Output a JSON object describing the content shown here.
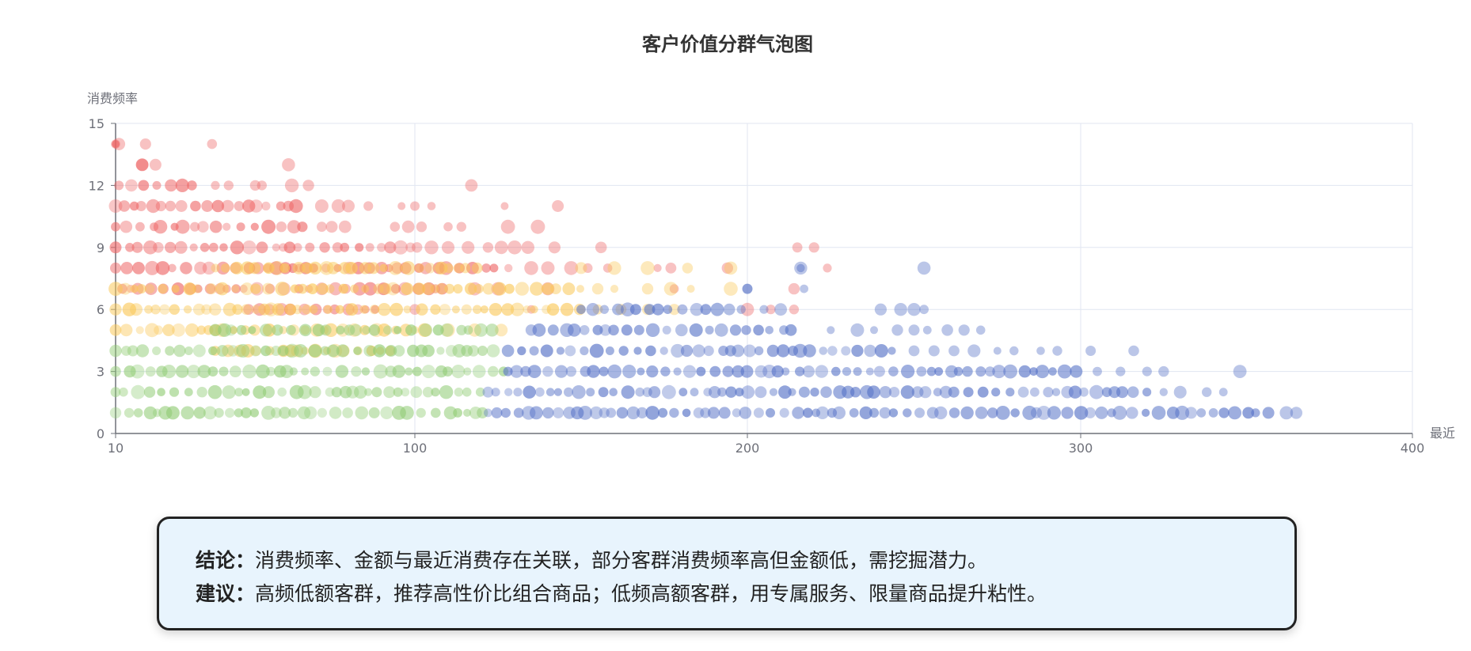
{
  "chart_data": {
    "type": "scatter",
    "title": "客户价值分群气泡图",
    "xlabel": "最近",
    "ylabel": "消费频率",
    "xlim": [
      10,
      400
    ],
    "ylim": [
      0,
      15
    ],
    "x_ticks": [
      "10",
      "100",
      "200",
      "300",
      "400"
    ],
    "y_ticks": [
      "0",
      "3",
      "6",
      "9",
      "12",
      "15"
    ],
    "grid": true,
    "series": [
      {
        "color": "#ee6666",
        "rows": [
          {
            "y": 14,
            "xmin": 10,
            "xmax": 12,
            "sparse": [
              10,
              11,
              19,
              39
            ]
          },
          {
            "y": 13,
            "xmin": 18,
            "xmax": 18,
            "sparse": [
              18,
              22,
              62
            ]
          },
          {
            "y": 12,
            "xmin": 11,
            "xmax": 35,
            "sparse": [
              40,
              44,
              52,
              54,
              63,
              68,
              117
            ]
          },
          {
            "y": 11,
            "xmin": 10,
            "xmax": 65,
            "sparse": [
              72,
              77,
              80,
              86,
              96,
              100,
              105,
              127,
              143
            ]
          },
          {
            "y": 10,
            "xmin": 10,
            "xmax": 68,
            "sparse": [
              72,
              75,
              79,
              94,
              98,
              102,
              110,
              114,
              128,
              137
            ]
          },
          {
            "y": 9,
            "xmin": 10,
            "xmax": 102,
            "sparse": [
              105,
              110,
              116,
              122,
              126,
              130,
              134,
              142,
              156,
              215,
              220
            ]
          },
          {
            "y": 8,
            "xmin": 10,
            "xmax": 130,
            "sparse": [
              135,
              140,
              147,
              152,
              158,
              173,
              177,
              194,
              224
            ]
          },
          {
            "y": 7,
            "xmin": 12,
            "xmax": 110,
            "sparse": [
              118,
              125,
              140,
              178,
              214
            ]
          },
          {
            "y": 6,
            "xmin": 50,
            "xmax": 90,
            "sparse": [
              100,
              135,
              200,
              207,
              214
            ]
          }
        ]
      },
      {
        "color": "#fac858",
        "rows": [
          {
            "y": 8,
            "xmin": 40,
            "xmax": 120,
            "sparse": [
              150,
              160,
              170,
              182,
              195
            ]
          },
          {
            "y": 7,
            "xmin": 10,
            "xmax": 150,
            "sparse": [
              155,
              160,
              170,
              177,
              183,
              195
            ]
          },
          {
            "y": 6,
            "xmin": 10,
            "xmax": 150,
            "sparse": [
              155,
              162,
              170,
              178
            ]
          },
          {
            "y": 5,
            "xmin": 10,
            "xmax": 105,
            "sparse": [
              110,
              118,
              126
            ]
          },
          {
            "y": 4,
            "xmin": 40,
            "xmax": 95,
            "sparse": []
          }
        ]
      },
      {
        "color": "#91cc75",
        "rows": [
          {
            "y": 5,
            "xmin": 40,
            "xmax": 125,
            "sparse": []
          },
          {
            "y": 4,
            "xmin": 10,
            "xmax": 125,
            "sparse": []
          },
          {
            "y": 3,
            "xmin": 10,
            "xmax": 128,
            "sparse": []
          },
          {
            "y": 2,
            "xmin": 10,
            "xmax": 122,
            "sparse": []
          },
          {
            "y": 1,
            "xmin": 10,
            "xmax": 122,
            "sparse": []
          }
        ]
      },
      {
        "color": "#5470c6",
        "rows": [
          {
            "y": 8,
            "xmin": 216,
            "xmax": 216,
            "sparse": [
              216,
              253
            ]
          },
          {
            "y": 7,
            "xmin": 200,
            "xmax": 200,
            "sparse": [
              200,
              217
            ]
          },
          {
            "y": 6,
            "xmin": 150,
            "xmax": 200,
            "sparse": [
              205,
              210,
              240,
              246,
              250,
              253
            ]
          },
          {
            "y": 5,
            "xmin": 135,
            "xmax": 215,
            "sparse": [
              225,
              233,
              238,
              245,
              250,
              254,
              260,
              265,
              270
            ]
          },
          {
            "y": 4,
            "xmin": 128,
            "xmax": 245,
            "sparse": [
              250,
              256,
              262,
              268,
              275,
              280,
              288,
              293,
              303,
              316
            ]
          },
          {
            "y": 3,
            "xmin": 128,
            "xmax": 300,
            "sparse": [
              305,
              312,
              320,
              325,
              348
            ]
          },
          {
            "y": 2,
            "xmin": 122,
            "xmax": 320,
            "sparse": [
              325,
              330,
              338,
              343
            ]
          },
          {
            "y": 1,
            "xmin": 122,
            "xmax": 360,
            "sparse": [
              362,
              365
            ]
          }
        ]
      }
    ]
  },
  "conclusion": {
    "label": "结论：",
    "text": "消费频率、金额与最近消费存在关联，部分客群消费频率高但金额低，需挖掘潜力。"
  },
  "suggestion": {
    "label": "建议：",
    "text": "高频低额客群，推荐高性价比组合商品；低频高额客群，用专属服务、限量商品提升粘性。"
  }
}
